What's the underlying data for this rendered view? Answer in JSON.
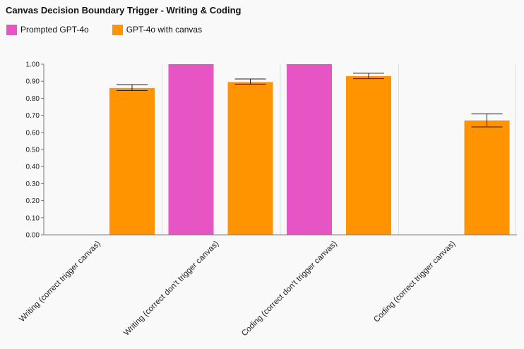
{
  "chart_data": {
    "type": "bar",
    "title": "Canvas Decision Boundary Trigger - Writing & Coding",
    "xlabel": "",
    "ylabel": "",
    "ylim": [
      0,
      1
    ],
    "yticks": [
      "0.00",
      "0.10",
      "0.20",
      "0.30",
      "0.40",
      "0.50",
      "0.60",
      "0.70",
      "0.80",
      "0.90",
      "1.00"
    ],
    "categories": [
      "Writing (correct trigger canvas)",
      "Writing (correct don't trigger canvas)",
      "Coding (correct don't trigger canvas)",
      "Coding (correct trigger canvas)"
    ],
    "series": [
      {
        "name": "Prompted GPT-4o",
        "color": "#e755c4",
        "values": [
          null,
          1.0,
          1.0,
          null
        ]
      },
      {
        "name": "GPT-4o with canvas",
        "color": "#ff9300",
        "values": [
          0.86,
          0.895,
          0.93,
          0.67
        ],
        "error_low": [
          0.845,
          0.883,
          0.915,
          0.632
        ],
        "error_high": [
          0.88,
          0.913,
          0.947,
          0.708
        ]
      }
    ],
    "grid": "vertical separators between categories",
    "legend_position": "top-left"
  }
}
